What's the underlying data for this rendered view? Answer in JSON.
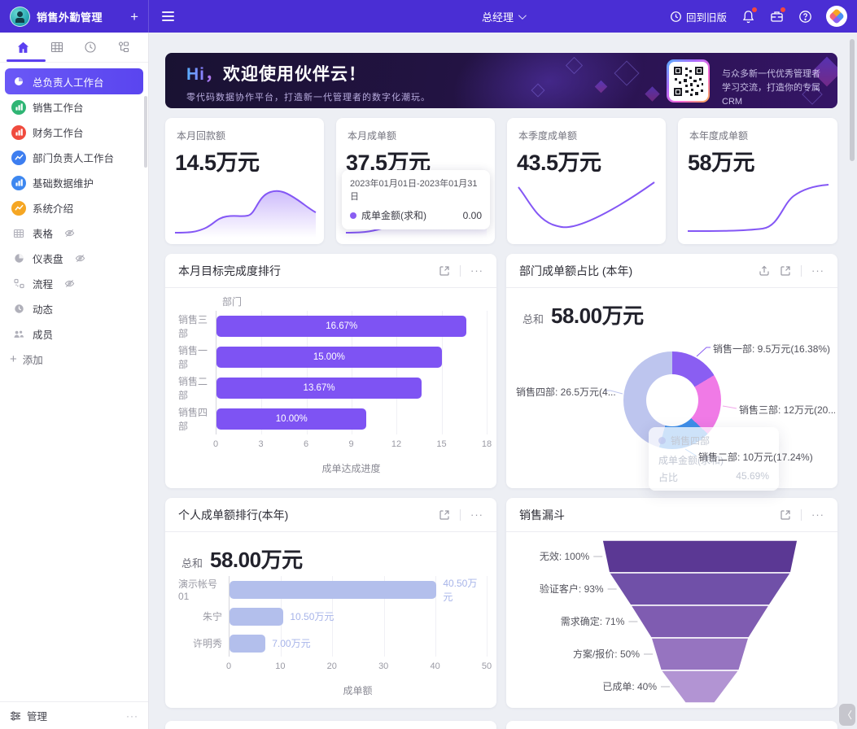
{
  "navbar": {
    "app_title": "销售外勤管理",
    "role": "总经理",
    "back_label": "回到旧版"
  },
  "sidebar": {
    "tabs": [
      {
        "icon": "home-icon",
        "active": true
      },
      {
        "icon": "grid-icon",
        "active": false
      },
      {
        "icon": "clock-icon",
        "active": false
      },
      {
        "icon": "org-icon",
        "active": false
      }
    ],
    "menu": [
      {
        "label": "总负责人工作台",
        "icon": "pie-chart-icon",
        "color": "#ffffff",
        "active": true,
        "hidden_eye": false
      },
      {
        "label": "销售工作台",
        "icon": "bar-chart-icon",
        "color": "#2fb574",
        "active": false,
        "hidden_eye": false
      },
      {
        "label": "财务工作台",
        "icon": "bar-chart-icon",
        "color": "#f04b3e",
        "active": false,
        "hidden_eye": false
      },
      {
        "label": "部门负责人工作台",
        "icon": "line-chart-icon",
        "color": "#3d7ef0",
        "active": false,
        "hidden_eye": false
      },
      {
        "label": "基础数据维护",
        "icon": "bar-chart-icon",
        "color": "#3d87f0",
        "active": false,
        "hidden_eye": false
      },
      {
        "label": "系统介绍",
        "icon": "line-chart-icon",
        "color": "#f5a623",
        "active": false,
        "hidden_eye": false
      },
      {
        "label": "表格",
        "icon": "table-icon",
        "color": "#b0b0ba",
        "active": false,
        "hidden_eye": true
      },
      {
        "label": "仪表盘",
        "icon": "dashboard-icon",
        "color": "#b0b0ba",
        "active": false,
        "hidden_eye": true
      },
      {
        "label": "流程",
        "icon": "flow-icon",
        "color": "#b0b0ba",
        "active": false,
        "hidden_eye": true
      },
      {
        "label": "动态",
        "icon": "activity-icon",
        "color": "#b0b0ba",
        "active": false,
        "hidden_eye": false
      },
      {
        "label": "成员",
        "icon": "members-icon",
        "color": "#b0b0ba",
        "active": false,
        "hidden_eye": false
      }
    ],
    "add_label": "添加",
    "manage_label": "管理"
  },
  "banner": {
    "greeting": "Hi，",
    "title": "欢迎使用伙伴云！",
    "subtitle": "零代码数据协作平台，打造新一代管理者的数字化潮玩。",
    "qr_line1": "与众多新一代优秀管理者",
    "qr_line2": "学习交流，打造你的专属CRM"
  },
  "stat_cards": [
    {
      "label": "本月回款额",
      "value": "14.5万元"
    },
    {
      "label": "本月成单额",
      "value": "37.5万元",
      "tooltip": {
        "date_range": "2023年01月01日-2023年01月31日",
        "series_label": "成单金额(求和)",
        "series_value": "0.00",
        "dot_color": "#8a5ef2"
      }
    },
    {
      "label": "本季度成单额",
      "value": "43.5万元"
    },
    {
      "label": "本年度成单额",
      "value": "58万元"
    }
  ],
  "chart_data": [
    {
      "type": "bar",
      "orientation": "horizontal",
      "title": "本月目标完成度排行",
      "categories": [
        "销售三部",
        "销售一部",
        "销售二部",
        "销售四部"
      ],
      "values": [
        16.67,
        15.0,
        13.67,
        10.0
      ],
      "value_labels": [
        "16.67%",
        "15.00%",
        "13.67%",
        "10.00%"
      ],
      "xlabel": "成单达成进度",
      "ylabel": "部门",
      "xlim": [
        0,
        18
      ],
      "ticks": [
        0,
        3,
        6,
        9,
        12,
        15,
        18
      ],
      "grid": true,
      "bar_color": "#7e53f3"
    },
    {
      "type": "pie",
      "title": "部门成单额占比 (本年)",
      "total_label": "总和",
      "total_value": "58.00万元",
      "slices": [
        {
          "name": "销售一部",
          "value_wan": 9.5,
          "pct": 16.38,
          "label": "销售一部: 9.5万元(16.38%)",
          "color": "#8a5ef2"
        },
        {
          "name": "销售三部",
          "value_wan": 12,
          "pct": 20.69,
          "label": "销售三部: 12万元(20....",
          "color": "#f07ae6"
        },
        {
          "name": "销售二部",
          "value_wan": 10,
          "pct": 17.24,
          "label": "销售二部: 10万元(17.24%)",
          "color": "#3e8ee9"
        },
        {
          "name": "销售四部",
          "value_wan": 26.5,
          "pct": 45.69,
          "label": "销售四部: 26.5万元(4...",
          "color": "#bdc5ee"
        }
      ],
      "tooltip": {
        "name": "销售四部",
        "row1_label": "成单金额(求和)",
        "row2_label": "占比",
        "row2_value": "45.69%"
      }
    },
    {
      "type": "bar",
      "orientation": "horizontal",
      "title": "个人成单额排行(本年)",
      "total_label": "总和",
      "total_value": "58.00万元",
      "categories": [
        "演示帐号01",
        "朱宁",
        "许明秀"
      ],
      "values": [
        40.5,
        10.5,
        7.0
      ],
      "value_labels": [
        "40.50万元",
        "10.50万元",
        "7.00万元"
      ],
      "xlabel": "成单额",
      "xlim": [
        0,
        50
      ],
      "ticks": [
        0,
        10,
        20,
        30,
        40,
        50
      ],
      "grid": true,
      "bar_color": "#b3bfec",
      "value_color": "#a7b4e9"
    },
    {
      "type": "funnel",
      "title": "销售漏斗",
      "stages": [
        {
          "label": "无效: 100%",
          "pct": 100,
          "color": "#5b3894"
        },
        {
          "label": "验证客户: 93%",
          "pct": 93,
          "color": "#7050a8"
        },
        {
          "label": "需求确定: 71%",
          "pct": 71,
          "color": "#7f5cb1"
        },
        {
          "label": "方案/报价: 50%",
          "pct": 50,
          "color": "#9674c0"
        },
        {
          "label": "已成单: 40%",
          "pct": 40,
          "color": "#b294d3"
        }
      ]
    }
  ],
  "icons": {
    "more": "···",
    "plus": "+",
    "collapse": "〈"
  },
  "colors": {
    "navbar": "#4a2ed4",
    "accent": "#5b3ff0",
    "spark": "#8457f5"
  }
}
